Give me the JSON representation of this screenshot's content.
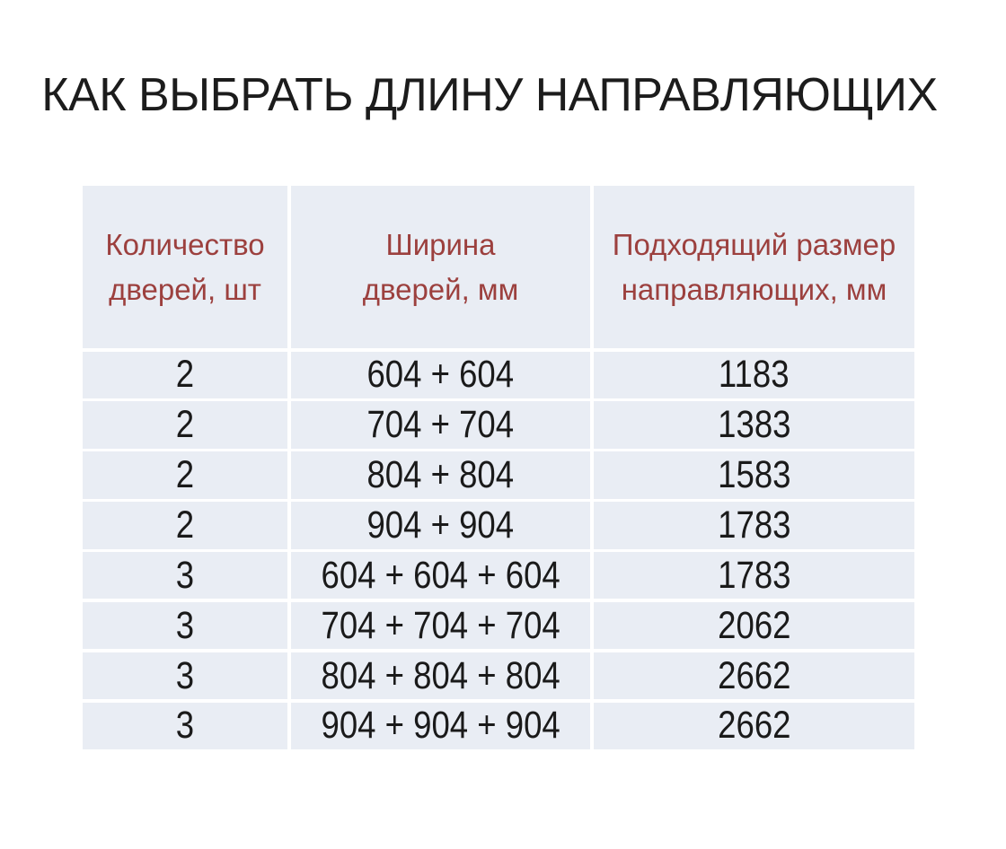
{
  "page": {
    "title": "КАК ВЫБРАТЬ ДЛИНУ НАПРАВЛЯЮЩИХ",
    "background": "#ffffff"
  },
  "colors": {
    "cell_background": "#e9edf4",
    "separator": "#ffffff",
    "header_text": "#9c403e",
    "title_text": "#1c1c1c",
    "data_text": "#1a1a1a"
  },
  "table": {
    "header": [
      {
        "lines": [
          "Количество",
          "дверей, шт"
        ]
      },
      {
        "lines": [
          "Ширина",
          "дверей, мм"
        ]
      },
      {
        "lines": [
          "Подходящий размер",
          "направляющих, мм"
        ]
      }
    ]
  },
  "chart_data": {
    "type": "table",
    "title": "КАК ВЫБРАТЬ ДЛИНУ НАПРАВЛЯЮЩИХ",
    "columns": [
      "Количество дверей, шт",
      "Ширина дверей, мм",
      "Подходящий размер направляющих, мм"
    ],
    "rows": [
      [
        "2",
        "604 + 604",
        "1183"
      ],
      [
        "2",
        "704 + 704",
        "1383"
      ],
      [
        "2",
        "804 + 804",
        "1583"
      ],
      [
        "2",
        "904 + 904",
        "1783"
      ],
      [
        "3",
        "604 + 604 + 604",
        "1783"
      ],
      [
        "3",
        "704 + 704 + 704",
        "2062"
      ],
      [
        "3",
        "804 + 804 + 804",
        "2662"
      ],
      [
        "3",
        "904 + 904 + 904",
        "2662"
      ]
    ],
    "layout": {
      "grid": "white gaps between cells",
      "header_rows": 1
    }
  }
}
